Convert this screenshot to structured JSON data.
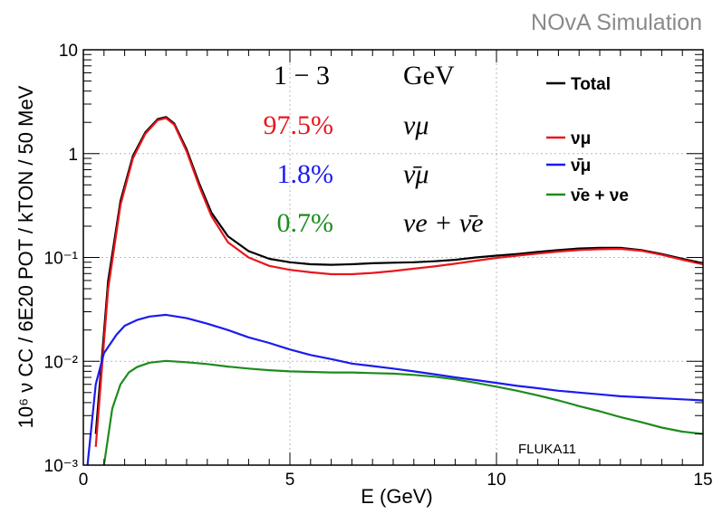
{
  "watermark": "NOvA Simulation",
  "generator": "FLUKA11",
  "chart_data": {
    "type": "line",
    "title": "",
    "xlabel": "E (GeV)",
    "ylabel": "10⁶ ν CC / 6E20 POT / kTON / 50 MeV",
    "xlim": [
      0,
      15
    ],
    "ylim": [
      0.001,
      10
    ],
    "yscale": "log",
    "x_ticks": [
      "0",
      "5",
      "10",
      "15"
    ],
    "y_ticks": [
      "10⁻³",
      "10⁻²",
      "10⁻¹",
      "1",
      "10"
    ],
    "grid": true,
    "legend_position": "top-right",
    "annotations": {
      "range_value": "1 − 3",
      "range_unit": "GeV",
      "rows": [
        {
          "percent": "97.5%",
          "label": "νμ",
          "color": "#e8161d"
        },
        {
          "percent": "1.8%",
          "label": "ν̄μ",
          "color": "#1b1bf0"
        },
        {
          "percent": "0.7%",
          "label": "νe + ν̄e",
          "color": "#1e8b1e"
        }
      ]
    },
    "series": [
      {
        "name": "Total",
        "legend_label": "Total",
        "color": "#000000",
        "x": [
          0.3,
          0.6,
          0.9,
          1.2,
          1.5,
          1.8,
          2.0,
          2.2,
          2.5,
          2.8,
          3.1,
          3.5,
          4.0,
          4.5,
          5.0,
          5.5,
          6.0,
          6.5,
          7.0,
          7.5,
          8.0,
          8.5,
          9.0,
          9.5,
          10.0,
          10.5,
          11.0,
          11.5,
          12.0,
          12.5,
          13.0,
          13.5,
          14.0,
          14.5,
          15.0
        ],
        "values": [
          0.002,
          0.06,
          0.35,
          0.95,
          1.6,
          2.15,
          2.25,
          1.95,
          1.1,
          0.52,
          0.27,
          0.16,
          0.115,
          0.097,
          0.09,
          0.086,
          0.085,
          0.086,
          0.088,
          0.089,
          0.09,
          0.092,
          0.095,
          0.1,
          0.104,
          0.108,
          0.113,
          0.118,
          0.122,
          0.124,
          0.124,
          0.118,
          0.108,
          0.097,
          0.088
        ]
      },
      {
        "name": "νμ",
        "legend_label": "νμ",
        "color": "#e8161d",
        "x": [
          0.3,
          0.6,
          0.9,
          1.2,
          1.5,
          1.8,
          2.0,
          2.2,
          2.5,
          2.8,
          3.1,
          3.5,
          4.0,
          4.5,
          5.0,
          5.5,
          6.0,
          6.5,
          7.0,
          7.5,
          8.0,
          8.5,
          9.0,
          9.5,
          10.0,
          10.5,
          11.0,
          11.5,
          12.0,
          12.5,
          13.0,
          13.5,
          14.0,
          14.5,
          15.0
        ],
        "values": [
          0.0015,
          0.05,
          0.32,
          0.9,
          1.55,
          2.1,
          2.2,
          1.9,
          1.05,
          0.49,
          0.25,
          0.14,
          0.1,
          0.083,
          0.076,
          0.072,
          0.069,
          0.069,
          0.071,
          0.074,
          0.078,
          0.082,
          0.087,
          0.093,
          0.099,
          0.104,
          0.109,
          0.114,
          0.118,
          0.12,
          0.121,
          0.116,
          0.106,
          0.095,
          0.086
        ]
      },
      {
        "name": "ν̄μ",
        "legend_label": "ν̄μ",
        "color": "#1b1bf0",
        "x": [
          0.1,
          0.3,
          0.5,
          0.8,
          1.0,
          1.3,
          1.6,
          2.0,
          2.5,
          3.0,
          3.5,
          4.0,
          4.5,
          5.0,
          5.5,
          6.0,
          6.5,
          7.0,
          7.5,
          8.0,
          8.5,
          9.0,
          9.5,
          10.0,
          10.5,
          11.0,
          11.5,
          12.0,
          12.5,
          13.0,
          13.5,
          14.0,
          14.5,
          15.0
        ],
        "values": [
          0.001,
          0.006,
          0.012,
          0.018,
          0.022,
          0.025,
          0.027,
          0.028,
          0.026,
          0.023,
          0.02,
          0.017,
          0.015,
          0.013,
          0.0115,
          0.0105,
          0.0095,
          0.009,
          0.0085,
          0.008,
          0.0075,
          0.007,
          0.0066,
          0.0062,
          0.0058,
          0.0055,
          0.0052,
          0.005,
          0.0048,
          0.0046,
          0.0045,
          0.0044,
          0.0043,
          0.0042
        ]
      },
      {
        "name": "ν̄e + νe",
        "legend_label": "ν̄e + νe",
        "color": "#1e8b1e",
        "x": [
          0.5,
          0.7,
          0.9,
          1.1,
          1.3,
          1.6,
          2.0,
          2.5,
          3.0,
          3.5,
          4.0,
          4.5,
          5.0,
          5.5,
          6.0,
          6.5,
          7.0,
          7.5,
          8.0,
          8.5,
          9.0,
          9.5,
          10.0,
          10.5,
          11.0,
          11.5,
          12.0,
          12.5,
          13.0,
          13.5,
          14.0,
          14.5,
          15.0
        ],
        "values": [
          0.001,
          0.0035,
          0.006,
          0.0078,
          0.0088,
          0.0097,
          0.0101,
          0.0098,
          0.0094,
          0.0089,
          0.0085,
          0.0082,
          0.008,
          0.0079,
          0.0078,
          0.0078,
          0.0077,
          0.0076,
          0.0074,
          0.0071,
          0.0067,
          0.0062,
          0.0057,
          0.0052,
          0.0047,
          0.0042,
          0.0037,
          0.0033,
          0.0029,
          0.0026,
          0.0023,
          0.0021,
          0.002
        ]
      }
    ]
  }
}
